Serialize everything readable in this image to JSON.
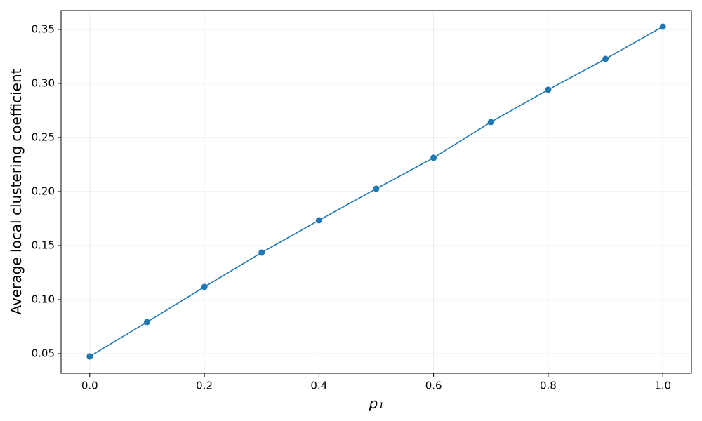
{
  "chart_data": {
    "type": "line",
    "xlabel": "p₁",
    "ylabel": "Average local clustering coefficient",
    "x": [
      0.0,
      0.1,
      0.2,
      0.3,
      0.4,
      0.5,
      0.6,
      0.7,
      0.8,
      0.9,
      1.0
    ],
    "series": [
      {
        "color": "#1f77b4",
        "values": [
          0.0474,
          0.0792,
          0.1117,
          0.1435,
          0.1734,
          0.2026,
          0.2312,
          0.2643,
          0.2942,
          0.3227,
          0.3526
        ]
      }
    ],
    "xlim": [
      -0.05,
      1.05
    ],
    "ylim": [
      0.0318,
      0.3675
    ],
    "xticks": [
      {
        "value": 0,
        "label": "0.0"
      },
      0.2,
      0.4,
      0.6,
      0.8,
      {
        "value": 1,
        "label": "1.0"
      }
    ],
    "yticks": [
      0.05,
      {
        "value": 0.1,
        "label": "0.10"
      },
      0.15,
      {
        "value": 0.2,
        "label": "0.20"
      },
      0.25,
      {
        "value": 0.3,
        "label": "0.30"
      },
      0.35
    ],
    "grid": true
  }
}
